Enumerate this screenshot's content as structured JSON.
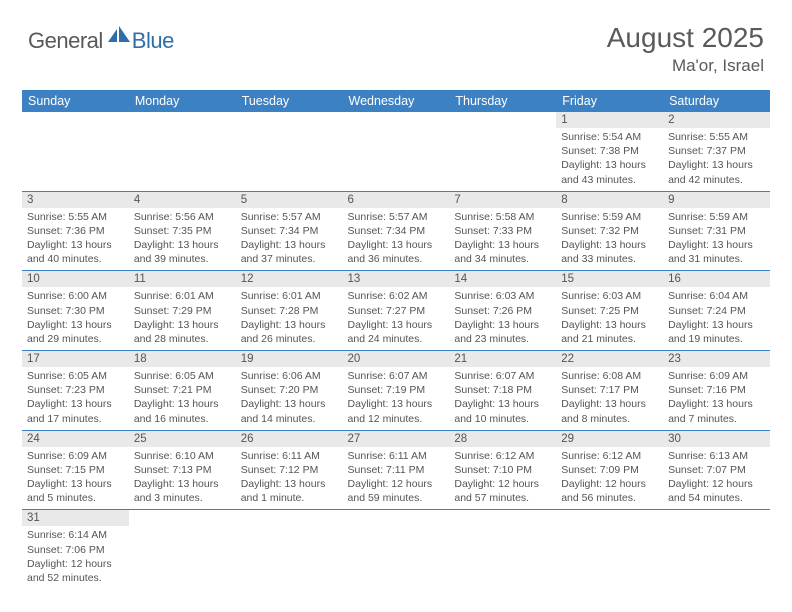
{
  "logo": {
    "word1": "General",
    "word2": "Blue"
  },
  "title": "August 2025",
  "location": "Ma'or, Israel",
  "colors": {
    "header_bg": "#3c81c3",
    "header_text": "#ffffff",
    "daynum_bg": "#e9e9e9",
    "text": "#555555",
    "rule": "#3c81c3",
    "logo_gray": "#595959",
    "logo_blue": "#2f6fa8"
  },
  "dayHeaders": [
    "Sunday",
    "Monday",
    "Tuesday",
    "Wednesday",
    "Thursday",
    "Friday",
    "Saturday"
  ],
  "startOffset": 5,
  "days": [
    {
      "n": "1",
      "sr": "5:54 AM",
      "ss": "7:38 PM",
      "dl": "13 hours and 43 minutes."
    },
    {
      "n": "2",
      "sr": "5:55 AM",
      "ss": "7:37 PM",
      "dl": "13 hours and 42 minutes."
    },
    {
      "n": "3",
      "sr": "5:55 AM",
      "ss": "7:36 PM",
      "dl": "13 hours and 40 minutes."
    },
    {
      "n": "4",
      "sr": "5:56 AM",
      "ss": "7:35 PM",
      "dl": "13 hours and 39 minutes."
    },
    {
      "n": "5",
      "sr": "5:57 AM",
      "ss": "7:34 PM",
      "dl": "13 hours and 37 minutes."
    },
    {
      "n": "6",
      "sr": "5:57 AM",
      "ss": "7:34 PM",
      "dl": "13 hours and 36 minutes."
    },
    {
      "n": "7",
      "sr": "5:58 AM",
      "ss": "7:33 PM",
      "dl": "13 hours and 34 minutes."
    },
    {
      "n": "8",
      "sr": "5:59 AM",
      "ss": "7:32 PM",
      "dl": "13 hours and 33 minutes."
    },
    {
      "n": "9",
      "sr": "5:59 AM",
      "ss": "7:31 PM",
      "dl": "13 hours and 31 minutes."
    },
    {
      "n": "10",
      "sr": "6:00 AM",
      "ss": "7:30 PM",
      "dl": "13 hours and 29 minutes."
    },
    {
      "n": "11",
      "sr": "6:01 AM",
      "ss": "7:29 PM",
      "dl": "13 hours and 28 minutes."
    },
    {
      "n": "12",
      "sr": "6:01 AM",
      "ss": "7:28 PM",
      "dl": "13 hours and 26 minutes."
    },
    {
      "n": "13",
      "sr": "6:02 AM",
      "ss": "7:27 PM",
      "dl": "13 hours and 24 minutes."
    },
    {
      "n": "14",
      "sr": "6:03 AM",
      "ss": "7:26 PM",
      "dl": "13 hours and 23 minutes."
    },
    {
      "n": "15",
      "sr": "6:03 AM",
      "ss": "7:25 PM",
      "dl": "13 hours and 21 minutes."
    },
    {
      "n": "16",
      "sr": "6:04 AM",
      "ss": "7:24 PM",
      "dl": "13 hours and 19 minutes."
    },
    {
      "n": "17",
      "sr": "6:05 AM",
      "ss": "7:23 PM",
      "dl": "13 hours and 17 minutes."
    },
    {
      "n": "18",
      "sr": "6:05 AM",
      "ss": "7:21 PM",
      "dl": "13 hours and 16 minutes."
    },
    {
      "n": "19",
      "sr": "6:06 AM",
      "ss": "7:20 PM",
      "dl": "13 hours and 14 minutes."
    },
    {
      "n": "20",
      "sr": "6:07 AM",
      "ss": "7:19 PM",
      "dl": "13 hours and 12 minutes."
    },
    {
      "n": "21",
      "sr": "6:07 AM",
      "ss": "7:18 PM",
      "dl": "13 hours and 10 minutes."
    },
    {
      "n": "22",
      "sr": "6:08 AM",
      "ss": "7:17 PM",
      "dl": "13 hours and 8 minutes."
    },
    {
      "n": "23",
      "sr": "6:09 AM",
      "ss": "7:16 PM",
      "dl": "13 hours and 7 minutes."
    },
    {
      "n": "24",
      "sr": "6:09 AM",
      "ss": "7:15 PM",
      "dl": "13 hours and 5 minutes."
    },
    {
      "n": "25",
      "sr": "6:10 AM",
      "ss": "7:13 PM",
      "dl": "13 hours and 3 minutes."
    },
    {
      "n": "26",
      "sr": "6:11 AM",
      "ss": "7:12 PM",
      "dl": "13 hours and 1 minute."
    },
    {
      "n": "27",
      "sr": "6:11 AM",
      "ss": "7:11 PM",
      "dl": "12 hours and 59 minutes."
    },
    {
      "n": "28",
      "sr": "6:12 AM",
      "ss": "7:10 PM",
      "dl": "12 hours and 57 minutes."
    },
    {
      "n": "29",
      "sr": "6:12 AM",
      "ss": "7:09 PM",
      "dl": "12 hours and 56 minutes."
    },
    {
      "n": "30",
      "sr": "6:13 AM",
      "ss": "7:07 PM",
      "dl": "12 hours and 54 minutes."
    },
    {
      "n": "31",
      "sr": "6:14 AM",
      "ss": "7:06 PM",
      "dl": "12 hours and 52 minutes."
    }
  ],
  "labels": {
    "sunrise": "Sunrise: ",
    "sunset": "Sunset: ",
    "daylight": "Daylight: "
  }
}
